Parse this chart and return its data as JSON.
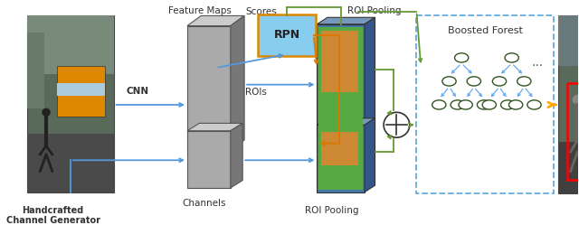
{
  "bg_color": "#ffffff",
  "labels": {
    "cnn": "CNN",
    "feature_maps": "Feature Maps",
    "scores": "Scores",
    "roi_pooling1": "ROI Pooling",
    "roi_pooling2": "ROI Pooling",
    "rois": "ROIs",
    "channels": "Channels",
    "handcrafted": "Handcrafted\nChannel Generator",
    "boosted_forest": "Boosted Forest",
    "rpn": "RPN",
    "dots": "..."
  },
  "colors": {
    "blue_arrow": "#5599dd",
    "orange_arrow": "#dd7700",
    "green_arrow": "#669933",
    "dashed_box": "#66aadd",
    "rpn_fill": "#88ccee",
    "rpn_border": "#dd8800",
    "feat_face": "#aaaaaa",
    "feat_side": "#777777",
    "feat_top": "#cccccc",
    "roi_blue": "#4477aa",
    "roi_green": "#55aa44",
    "roi_orange": "#cc8833",
    "roi_side": "#335588",
    "roi_top": "#7799bb",
    "tree_blue": "#66aaee",
    "tree_outline": "#335522",
    "yellow_arrow": "#ffaa00",
    "text_color": "#333333"
  }
}
